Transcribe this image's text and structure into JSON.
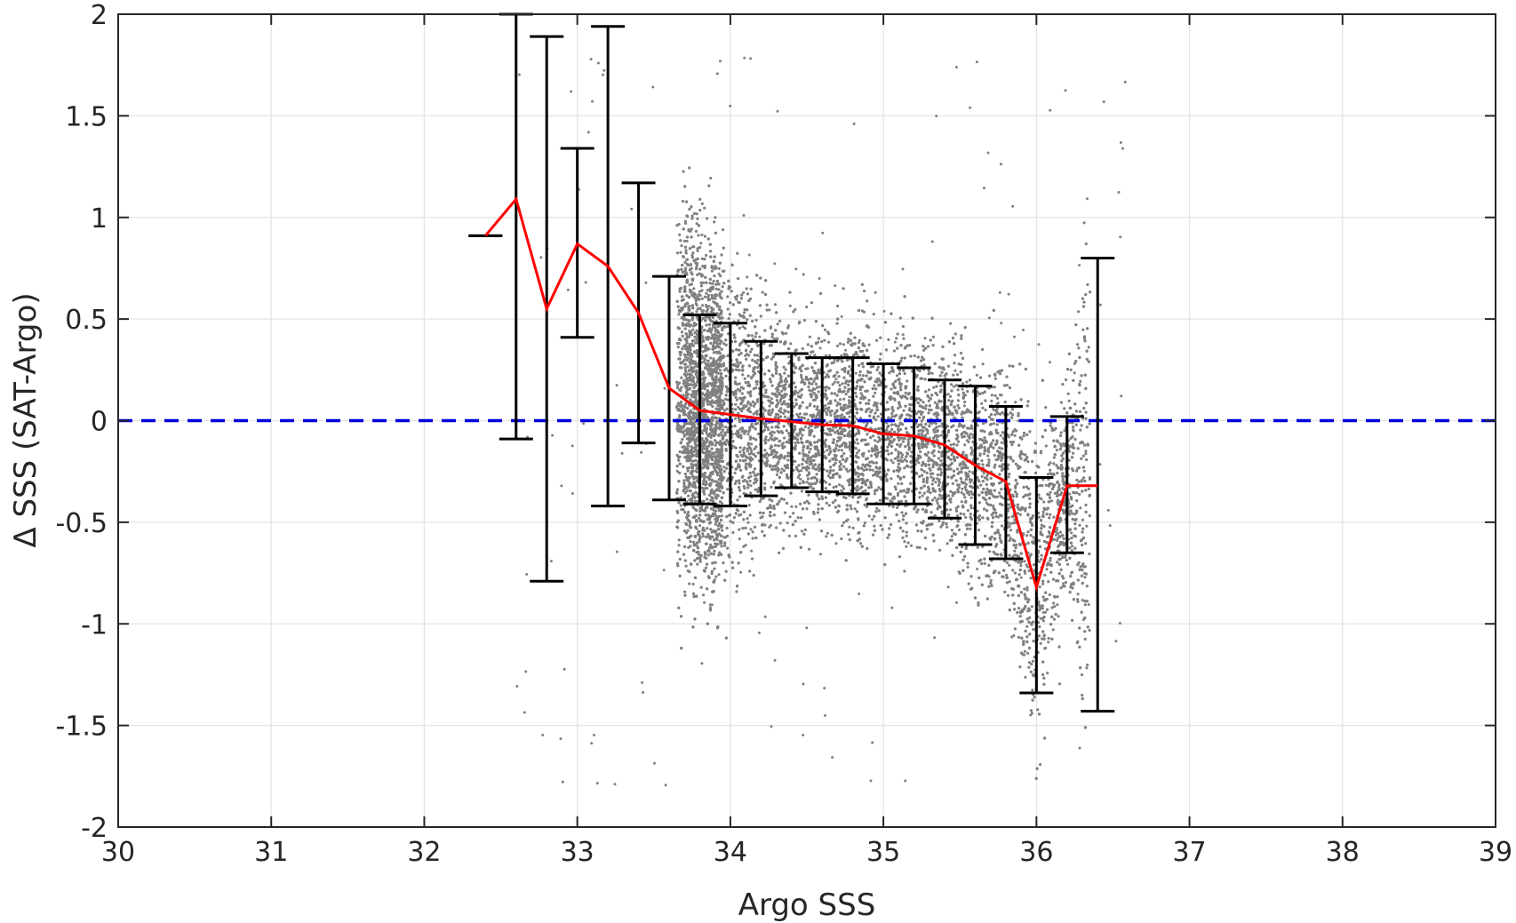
{
  "chart_data": {
    "type": "scatter",
    "title": "",
    "xlabel": "Argo SSS",
    "ylabel": "Δ SSS (SAT-Argo)",
    "xlim": [
      30,
      39
    ],
    "ylim": [
      -2,
      2
    ],
    "xticks": [
      "30",
      "31",
      "32",
      "33",
      "34",
      "35",
      "36",
      "37",
      "38",
      "39"
    ],
    "yticks": [
      "2",
      "1.5",
      "1",
      "0.5",
      "0",
      "-0.5",
      "-1",
      "-1.5",
      "-2"
    ],
    "grid": true,
    "colors": {
      "scatter": "#808080",
      "mean_line": "#ff0000",
      "error_bars": "#000000",
      "zero_line": "#0000dd"
    },
    "zero_line": {
      "y": 0,
      "style": "dashed"
    },
    "scatter_description": "dense cloud of individual match-up points, Argo SSS approx 33.6–36.4, ΔSSS approx -2 to 2",
    "series": [
      {
        "type": "line_with_error_bars",
        "x": [
          32.4,
          32.6,
          32.8,
          33.0,
          33.2,
          33.4,
          33.6,
          33.8,
          34.0,
          34.2,
          34.4,
          34.6,
          34.8,
          35.0,
          35.2,
          35.4,
          35.6,
          35.8,
          36.0,
          36.2,
          36.4
        ],
        "mean": [
          0.91,
          1.09,
          0.55,
          0.87,
          0.76,
          0.53,
          0.16,
          0.05,
          0.03,
          0.01,
          -0.005,
          -0.02,
          -0.025,
          -0.065,
          -0.075,
          -0.12,
          -0.22,
          -0.3,
          -0.82,
          -0.32,
          -0.32
        ],
        "upper": [
          0.91,
          2.0,
          1.89,
          1.34,
          1.94,
          1.17,
          0.71,
          0.52,
          0.48,
          0.39,
          0.33,
          0.31,
          0.31,
          0.28,
          0.26,
          0.2,
          0.17,
          0.07,
          -0.28,
          0.02,
          0.8
        ],
        "lower": [
          0.91,
          -0.09,
          -0.79,
          0.41,
          -0.42,
          -0.11,
          -0.39,
          -0.41,
          -0.42,
          -0.37,
          -0.33,
          -0.35,
          -0.36,
          -0.41,
          -0.41,
          -0.48,
          -0.61,
          -0.68,
          -1.34,
          -0.65,
          -1.43
        ]
      }
    ]
  }
}
